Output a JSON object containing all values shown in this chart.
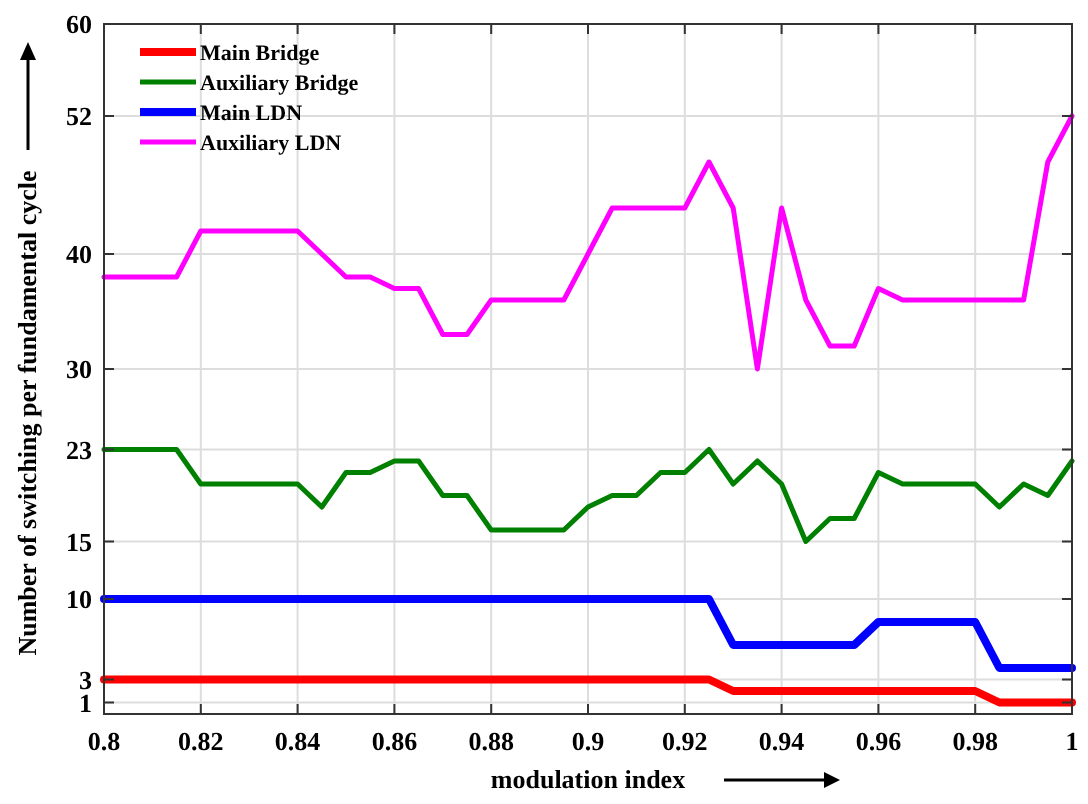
{
  "chart_data": {
    "type": "line",
    "xlabel": "modulation index",
    "ylabel": "Number of switching per fundamental cycle",
    "x": [
      0.8,
      0.805,
      0.81,
      0.815,
      0.82,
      0.825,
      0.83,
      0.835,
      0.84,
      0.845,
      0.85,
      0.855,
      0.86,
      0.865,
      0.87,
      0.875,
      0.88,
      0.885,
      0.89,
      0.895,
      0.9,
      0.905,
      0.91,
      0.915,
      0.92,
      0.925,
      0.93,
      0.935,
      0.94,
      0.945,
      0.95,
      0.955,
      0.96,
      0.965,
      0.97,
      0.975,
      0.98,
      0.985,
      0.99,
      0.995,
      1
    ],
    "series": [
      {
        "name": "Main Bridge",
        "color": "#ff0000",
        "values": [
          3,
          3,
          3,
          3,
          3,
          3,
          3,
          3,
          3,
          3,
          3,
          3,
          3,
          3,
          3,
          3,
          3,
          3,
          3,
          3,
          3,
          3,
          3,
          3,
          3,
          3,
          2,
          2,
          2,
          2,
          2,
          2,
          2,
          2,
          2,
          2,
          2,
          1,
          1,
          1,
          1
        ]
      },
      {
        "name": "Auxiliary Bridge",
        "color": "#008000",
        "values": [
          23,
          23,
          23,
          23,
          20,
          20,
          20,
          20,
          20,
          18,
          21,
          21,
          22,
          22,
          19,
          19,
          16,
          16,
          16,
          16,
          18,
          19,
          19,
          21,
          21,
          23,
          20,
          22,
          20,
          15,
          17,
          17,
          21,
          20,
          20,
          20,
          20,
          18,
          20,
          19,
          22
        ]
      },
      {
        "name": "Main LDN",
        "color": "#0000ff",
        "values": [
          10,
          10,
          10,
          10,
          10,
          10,
          10,
          10,
          10,
          10,
          10,
          10,
          10,
          10,
          10,
          10,
          10,
          10,
          10,
          10,
          10,
          10,
          10,
          10,
          10,
          10,
          6,
          6,
          6,
          6,
          6,
          6,
          8,
          8,
          8,
          8,
          8,
          4,
          4,
          4,
          4
        ]
      },
      {
        "name": "Auxiliary LDN",
        "color": "#ff00ff",
        "values": [
          38,
          38,
          38,
          38,
          42,
          42,
          42,
          42,
          42,
          40,
          38,
          38,
          37,
          37,
          33,
          33,
          36,
          36,
          36,
          36,
          40,
          44,
          44,
          44,
          44,
          48,
          44,
          30,
          44,
          36,
          32,
          32,
          37,
          36,
          36,
          36,
          36,
          36,
          36,
          48,
          52
        ]
      }
    ],
    "xlim": [
      0.8,
      1
    ],
    "xticks": [
      0.8,
      0.82,
      0.84,
      0.86,
      0.88,
      0.9,
      0.92,
      0.94,
      0.96,
      0.98,
      1
    ],
    "ylim": [
      0,
      60
    ],
    "yticks": [
      1,
      3,
      10,
      15,
      23,
      30,
      40,
      52,
      60
    ],
    "grid": true,
    "legend": "top left",
    "line_style": "solid",
    "marker": "none"
  }
}
